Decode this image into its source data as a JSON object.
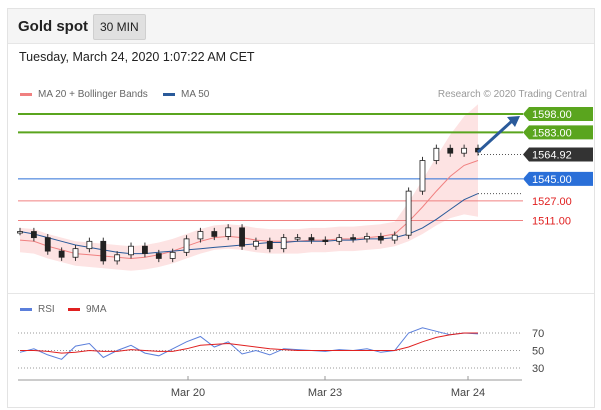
{
  "header": {
    "title": "Gold spot",
    "timeframe": "30 MIN"
  },
  "timestamp": "Tuesday, March 24, 2020 1:07:22 AM CET",
  "legend_main": [
    {
      "label": "MA 20 + Bollinger Bands",
      "color": "#f08080"
    },
    {
      "label": "MA 50",
      "color": "#2a5a9a"
    }
  ],
  "legend_rsi": [
    {
      "label": "RSI",
      "color": "#5b7fdb"
    },
    {
      "label": "9MA",
      "color": "#e02020"
    }
  ],
  "credit": "Research © 2020 Trading Central",
  "colors": {
    "resistance": "#5aa51e",
    "pivot": "#2a6fd8",
    "support": "#f08080",
    "price_tag": "#333333",
    "arrow": "#2a5a9a"
  },
  "chart_data": [
    {
      "type": "line",
      "title": "",
      "price_levels": [
        {
          "label": "1598.00",
          "value": 1598.0,
          "kind": "resistance"
        },
        {
          "label": "1583.00",
          "value": 1583.0,
          "kind": "resistance"
        },
        {
          "label": "1564.92",
          "value": 1564.92,
          "kind": "last"
        },
        {
          "label": "1545.00",
          "value": 1545.0,
          "kind": "pivot"
        },
        {
          "label": "1527.00",
          "value": 1527.0,
          "kind": "support"
        },
        {
          "label": "1511.00",
          "value": 1511.0,
          "kind": "support"
        }
      ],
      "x_ticks": [
        "Mar 20",
        "Mar 23",
        "Mar 24"
      ],
      "series": [
        {
          "name": "MA 20 + Bollinger Bands",
          "values": [
            1495,
            1494,
            1490,
            1487,
            1484,
            1483,
            1482,
            1481,
            1480,
            1481,
            1483,
            1486,
            1490,
            1494,
            1497,
            1498,
            1497,
            1495,
            1494,
            1494,
            1494,
            1495,
            1495,
            1496,
            1496,
            1497,
            1498,
            1500,
            1510,
            1522,
            1535,
            1547,
            1556,
            1560
          ]
        },
        {
          "name": "MA 50",
          "values": [
            1502,
            1500,
            1497,
            1494,
            1491,
            1489,
            1487,
            1485,
            1484,
            1484,
            1485,
            1486,
            1487,
            1488,
            1489,
            1490,
            1491,
            1492,
            1493,
            1493,
            1494,
            1494,
            1494,
            1495,
            1495,
            1496,
            1496,
            1497,
            1500,
            1505,
            1512,
            1520,
            1528,
            1533
          ]
        }
      ],
      "close": [
        1502,
        1497,
        1486,
        1481,
        1488,
        1494,
        1478,
        1483,
        1490,
        1484,
        1480,
        1485,
        1496,
        1502,
        1498,
        1505,
        1490,
        1494,
        1488,
        1497,
        1497,
        1495,
        1494,
        1497,
        1496,
        1498,
        1495,
        1499,
        1535,
        1560,
        1570,
        1566,
        1570,
        1567
      ],
      "forecast_target": 1598.0
    },
    {
      "type": "line",
      "title": "",
      "y_ticks": [
        70,
        50,
        30
      ],
      "series": [
        {
          "name": "RSI",
          "values": [
            48,
            52,
            45,
            40,
            55,
            58,
            42,
            50,
            56,
            47,
            44,
            52,
            60,
            66,
            54,
            60,
            46,
            50,
            45,
            52,
            51,
            50,
            49,
            51,
            50,
            52,
            48,
            50,
            70,
            76,
            72,
            68,
            70,
            69
          ]
        },
        {
          "name": "9MA",
          "values": [
            50,
            50,
            49,
            47,
            48,
            50,
            49,
            49,
            51,
            50,
            49,
            49,
            52,
            56,
            57,
            58,
            56,
            54,
            52,
            51,
            50,
            50,
            50,
            50,
            50,
            50,
            50,
            50,
            54,
            60,
            65,
            68,
            70,
            70
          ]
        }
      ]
    }
  ]
}
